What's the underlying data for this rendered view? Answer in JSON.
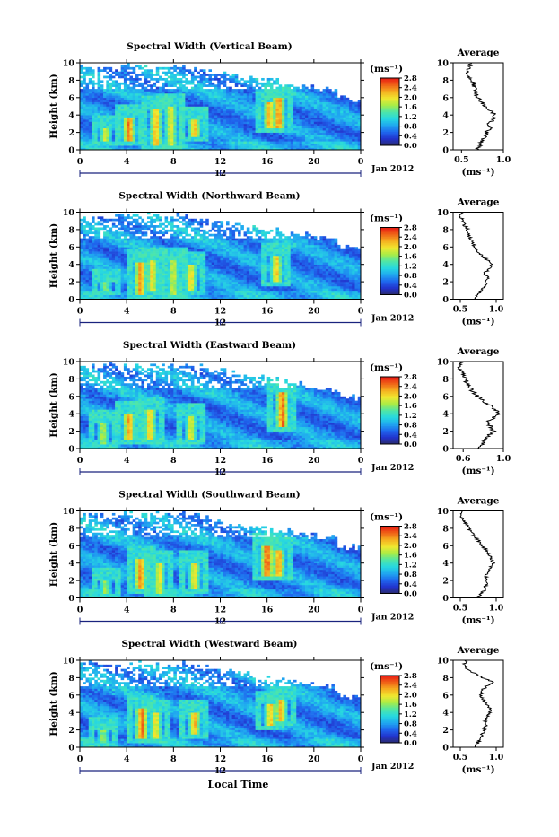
{
  "colors": {
    "colorbar_stops": [
      "#2b2b6b",
      "#2233cc",
      "#1f66ee",
      "#1fa8f0",
      "#27d8e0",
      "#4fe6a8",
      "#a8ec48",
      "#f0e830",
      "#f5b020",
      "#f06418",
      "#e81c14"
    ],
    "axis": "#000000",
    "baseline": "#1a237e"
  },
  "chart_data": [
    {
      "type": "heatmap",
      "title": "Spectral Width (Vertical Beam)",
      "ylabel": "Height (km)",
      "xlabel": "",
      "x_ticks": [
        "0",
        "4",
        "8",
        "12",
        "16",
        "20",
        "0"
      ],
      "y_ticks": [
        "0",
        "2",
        "4",
        "6",
        "8",
        "10"
      ],
      "xlim": [
        0,
        24
      ],
      "ylim": [
        0,
        10
      ],
      "colorbar": {
        "unit": "(ms⁻¹)",
        "ticks": [
          "0.0",
          "0.4",
          "0.8",
          "1.2",
          "1.6",
          "2.0",
          "2.4",
          "2.8"
        ],
        "range": [
          0,
          2.8
        ]
      },
      "date_label": "Jan 2012",
      "date_tick": "12",
      "profile": {
        "title": "Average",
        "xlabel": "(ms⁻¹)",
        "x_ticks": [
          "0.5",
          "1.0"
        ],
        "xlim": [
          0.4,
          1.0
        ],
        "y_ticks": [
          "0",
          "2",
          "4",
          "6",
          "8",
          "10"
        ],
        "heights": [
          0,
          0.5,
          1,
          1.5,
          2,
          2.5,
          3,
          3.5,
          4,
          4.5,
          5,
          5.5,
          6,
          6.5,
          7,
          7.5,
          8,
          8.5,
          9,
          9.5,
          10
        ],
        "values": [
          0.68,
          0.72,
          0.74,
          0.78,
          0.8,
          0.84,
          0.83,
          0.88,
          0.9,
          0.85,
          0.78,
          0.74,
          0.7,
          0.67,
          0.66,
          0.64,
          0.62,
          0.58,
          0.56,
          0.6,
          0.62
        ]
      },
      "plumes": [
        [
          4.2,
          1.0,
          3.8,
          2.5
        ],
        [
          6.5,
          0.5,
          4.8,
          2.2
        ],
        [
          9.8,
          1.5,
          3.5,
          2.2
        ],
        [
          16.2,
          2.5,
          5.5,
          2.2
        ],
        [
          17.0,
          2.5,
          6.0,
          2.4
        ],
        [
          2.2,
          1.0,
          2.5,
          1.8
        ],
        [
          7.8,
          0.5,
          5.0,
          1.9
        ]
      ]
    },
    {
      "type": "heatmap",
      "title": "Spectral Width (Northward Beam)",
      "ylabel": "Height (km)",
      "xlabel": "",
      "x_ticks": [
        "0",
        "4",
        "8",
        "12",
        "16",
        "20",
        "0"
      ],
      "y_ticks": [
        "0",
        "2",
        "4",
        "6",
        "8",
        "10"
      ],
      "xlim": [
        0,
        24
      ],
      "ylim": [
        0,
        10
      ],
      "colorbar": {
        "unit": "(ms⁻¹)",
        "ticks": [
          "0.0",
          "0.4",
          "0.8",
          "1.2",
          "1.6",
          "2.0",
          "2.4",
          "2.8"
        ],
        "range": [
          0,
          2.8
        ]
      },
      "date_label": "Jan 2012",
      "date_tick": "12",
      "profile": {
        "title": "Average",
        "xlabel": "(ms⁻¹)",
        "x_ticks": [
          "0.5",
          "1.0"
        ],
        "xlim": [
          0.4,
          1.1
        ],
        "y_ticks": [
          "0",
          "2",
          "4",
          "6",
          "8",
          "10"
        ],
        "heights": [
          0,
          0.5,
          1,
          1.5,
          2,
          2.5,
          3,
          3.5,
          4,
          4.5,
          5,
          5.5,
          6,
          6.5,
          7,
          7.5,
          8,
          8.5,
          9,
          9.5,
          10
        ],
        "values": [
          0.7,
          0.74,
          0.78,
          0.84,
          0.86,
          0.88,
          0.84,
          0.9,
          0.94,
          0.88,
          0.8,
          0.74,
          0.7,
          0.67,
          0.64,
          0.62,
          0.6,
          0.56,
          0.54,
          0.5,
          0.52
        ]
      },
      "plumes": [
        [
          5.2,
          0.5,
          4.2,
          2.3
        ],
        [
          6.2,
          1.0,
          4.5,
          2.0
        ],
        [
          9.5,
          1.0,
          4.0,
          2.0
        ],
        [
          16.8,
          2.0,
          5.0,
          2.1
        ],
        [
          2.2,
          1.0,
          2.0,
          1.6
        ],
        [
          8.0,
          0.5,
          4.5,
          1.8
        ]
      ]
    },
    {
      "type": "heatmap",
      "title": "Spectral Width (Eastward Beam)",
      "ylabel": "Height (km)",
      "xlabel": "",
      "x_ticks": [
        "0",
        "4",
        "8",
        "12",
        "16",
        "20",
        "0"
      ],
      "y_ticks": [
        "0",
        "2",
        "4",
        "6",
        "8",
        "10"
      ],
      "xlim": [
        0,
        24
      ],
      "ylim": [
        0,
        10
      ],
      "colorbar": {
        "unit": "(ms⁻¹)",
        "ticks": [
          "0.0",
          "0.4",
          "0.8",
          "1.2",
          "1.6",
          "2.0",
          "2.4",
          "2.8"
        ],
        "range": [
          0,
          2.8
        ]
      },
      "date_label": "Jan 2012",
      "date_tick": "12",
      "profile": {
        "title": "Average",
        "xlabel": "(ms⁻¹)",
        "x_ticks": [
          "0.6",
          "1.0"
        ],
        "xlim": [
          0.5,
          1.0
        ],
        "y_ticks": [
          "0",
          "2",
          "4",
          "6",
          "8",
          "10"
        ],
        "heights": [
          0,
          0.5,
          1,
          1.5,
          2,
          2.5,
          3,
          3.5,
          4,
          4.5,
          5,
          5.5,
          6,
          6.5,
          7,
          7.5,
          8,
          8.5,
          9,
          9.5,
          10
        ],
        "values": [
          0.75,
          0.8,
          0.82,
          0.86,
          0.9,
          0.88,
          0.84,
          0.9,
          0.95,
          0.92,
          0.86,
          0.8,
          0.74,
          0.7,
          0.66,
          0.64,
          0.62,
          0.6,
          0.58,
          0.56,
          0.58
        ]
      },
      "plumes": [
        [
          4.2,
          1.0,
          4.0,
          2.3
        ],
        [
          6.0,
          1.0,
          4.5,
          2.1
        ],
        [
          17.3,
          2.5,
          6.5,
          2.5
        ],
        [
          9.5,
          1.0,
          3.8,
          1.9
        ],
        [
          2.0,
          0.5,
          3.0,
          1.7
        ]
      ]
    },
    {
      "type": "heatmap",
      "title": "Spectral Width (Southward Beam)",
      "ylabel": "Height (km)",
      "xlabel": "",
      "x_ticks": [
        "0",
        "4",
        "8",
        "12",
        "16",
        "20",
        "0"
      ],
      "y_ticks": [
        "0",
        "2",
        "4",
        "6",
        "8",
        "10"
      ],
      "xlim": [
        0,
        24
      ],
      "ylim": [
        0,
        10
      ],
      "colorbar": {
        "unit": "(ms⁻¹)",
        "ticks": [
          "0.0",
          "0.4",
          "0.8",
          "1.2",
          "1.6",
          "2.0",
          "2.4",
          "2.8"
        ],
        "range": [
          0,
          2.8
        ]
      },
      "date_label": "Jan 2012",
      "date_tick": "12",
      "profile": {
        "title": "Average",
        "xlabel": "(ms⁻¹)",
        "x_ticks": [
          "0.5",
          "1.0"
        ],
        "xlim": [
          0.4,
          1.1
        ],
        "y_ticks": [
          "0",
          "2",
          "4",
          "6",
          "8",
          "10"
        ],
        "heights": [
          0,
          0.5,
          1,
          1.5,
          2,
          2.5,
          3,
          3.5,
          4,
          4.5,
          5,
          5.5,
          6,
          6.5,
          7,
          7.5,
          8,
          8.5,
          9,
          9.5,
          10
        ],
        "values": [
          0.74,
          0.8,
          0.84,
          0.86,
          0.88,
          0.86,
          0.88,
          0.92,
          0.96,
          0.94,
          0.9,
          0.86,
          0.8,
          0.76,
          0.7,
          0.66,
          0.62,
          0.58,
          0.54,
          0.5,
          0.52
        ]
      },
      "plumes": [
        [
          5.2,
          1.0,
          4.5,
          2.4
        ],
        [
          16.0,
          2.5,
          6.0,
          2.6
        ],
        [
          17.0,
          2.5,
          5.5,
          2.3
        ],
        [
          9.8,
          1.0,
          4.0,
          2.0
        ],
        [
          6.8,
          0.5,
          4.0,
          1.9
        ],
        [
          2.2,
          0.5,
          2.0,
          1.6
        ]
      ]
    },
    {
      "type": "heatmap",
      "title": "Spectral Width (Westward Beam)",
      "ylabel": "Height (km)",
      "xlabel": "Local Time",
      "x_ticks": [
        "0",
        "4",
        "8",
        "12",
        "16",
        "20",
        "0"
      ],
      "y_ticks": [
        "0",
        "2",
        "4",
        "6",
        "8",
        "10"
      ],
      "xlim": [
        0,
        24
      ],
      "ylim": [
        0,
        10
      ],
      "colorbar": {
        "unit": "(ms⁻¹)",
        "ticks": [
          "0.0",
          "0.4",
          "0.8",
          "1.2",
          "1.6",
          "2.0",
          "2.4",
          "2.8"
        ],
        "range": [
          0,
          2.8
        ]
      },
      "date_label": "Jan 2012",
      "date_tick": "12",
      "profile": {
        "title": "Average",
        "xlabel": "(ms⁻¹)",
        "x_ticks": [
          "0.5",
          "1.0"
        ],
        "xlim": [
          0.4,
          1.1
        ],
        "y_ticks": [
          "0",
          "2",
          "4",
          "6",
          "8",
          "10"
        ],
        "heights": [
          0,
          0.5,
          1,
          1.5,
          2,
          2.5,
          3,
          3.5,
          4,
          4.5,
          5,
          5.5,
          6,
          6.5,
          7,
          7.5,
          8,
          8.5,
          9,
          9.5,
          10
        ],
        "values": [
          0.7,
          0.74,
          0.78,
          0.8,
          0.84,
          0.86,
          0.84,
          0.88,
          0.92,
          0.9,
          0.86,
          0.82,
          0.78,
          0.8,
          0.86,
          0.96,
          0.8,
          0.7,
          0.6,
          0.55,
          0.58
        ]
      },
      "plumes": [
        [
          5.3,
          1.0,
          4.5,
          2.5
        ],
        [
          9.8,
          1.5,
          4.0,
          2.2
        ],
        [
          16.3,
          2.5,
          5.0,
          2.1
        ],
        [
          17.2,
          3.0,
          5.5,
          2.2
        ],
        [
          6.5,
          1.0,
          4.0,
          2.0
        ],
        [
          2.0,
          0.5,
          2.0,
          1.6
        ]
      ]
    }
  ]
}
